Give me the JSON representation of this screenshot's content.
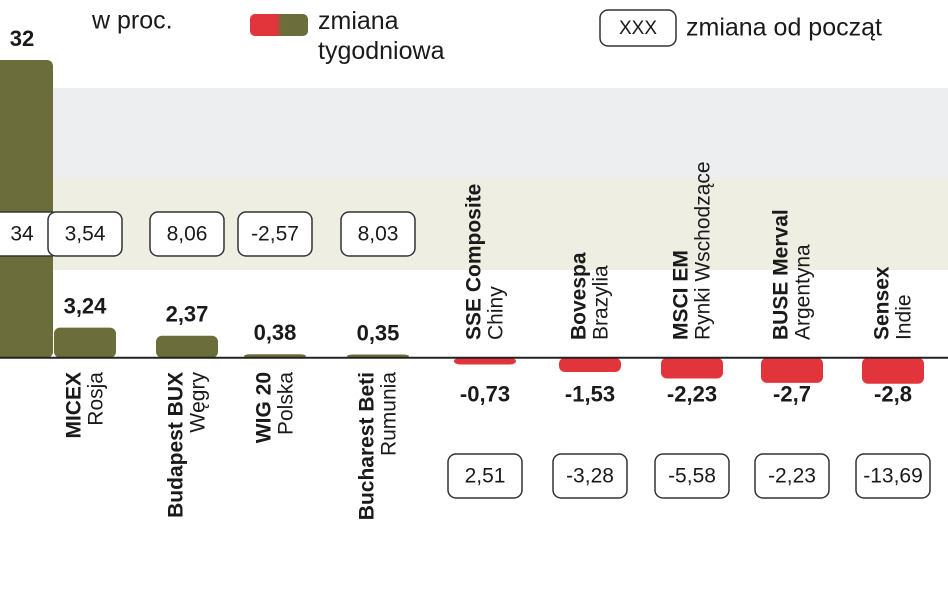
{
  "chart_data": {
    "type": "bar",
    "unit_note": "w proc.",
    "legend": {
      "weekly": "zmiana\ntygodniowa",
      "ytd_sample": "XXX",
      "ytd": "zmiana od począt"
    },
    "categories": [
      null,
      "MICEX",
      "Budapest BUX",
      "WIG 20",
      "Bucharest Beti",
      "SSE Composite",
      "Bovespa",
      "MSCI EM",
      "BUSE Merval",
      "Sensex"
    ],
    "regions": [
      null,
      "Rosja",
      "Węgry",
      "Polska",
      "Rumunia",
      "Chiny",
      "Brazylia",
      "Rynki Wschodzące",
      "Argentyna",
      "Indie"
    ],
    "series": [
      {
        "name": "zmiana tygodniowa",
        "color": "#6b6e3a",
        "negative_color": "#e2353b",
        "values": [
          32,
          3.24,
          2.37,
          0.38,
          0.35,
          -0.73,
          -1.53,
          -2.23,
          -2.7,
          -2.8
        ],
        "value_labels": [
          "32",
          "3,24",
          "2,37",
          "0,38",
          "0,35",
          "-0,73",
          "-1,53",
          "-2,23",
          "-2,7",
          "-2,8"
        ]
      },
      {
        "name": "zmiana od początku roku",
        "values": [
          34,
          3.54,
          8.06,
          -2.57,
          8.03,
          2.51,
          -3.28,
          -5.58,
          -2.23,
          -13.69
        ],
        "value_labels": [
          "34",
          "3,54",
          "8,06",
          "-2,57",
          "8,03",
          "2,51",
          "-3,28",
          "-5,58",
          "-2,23",
          "-13,69"
        ]
      }
    ],
    "ylim": [
      -14,
      32
    ]
  }
}
